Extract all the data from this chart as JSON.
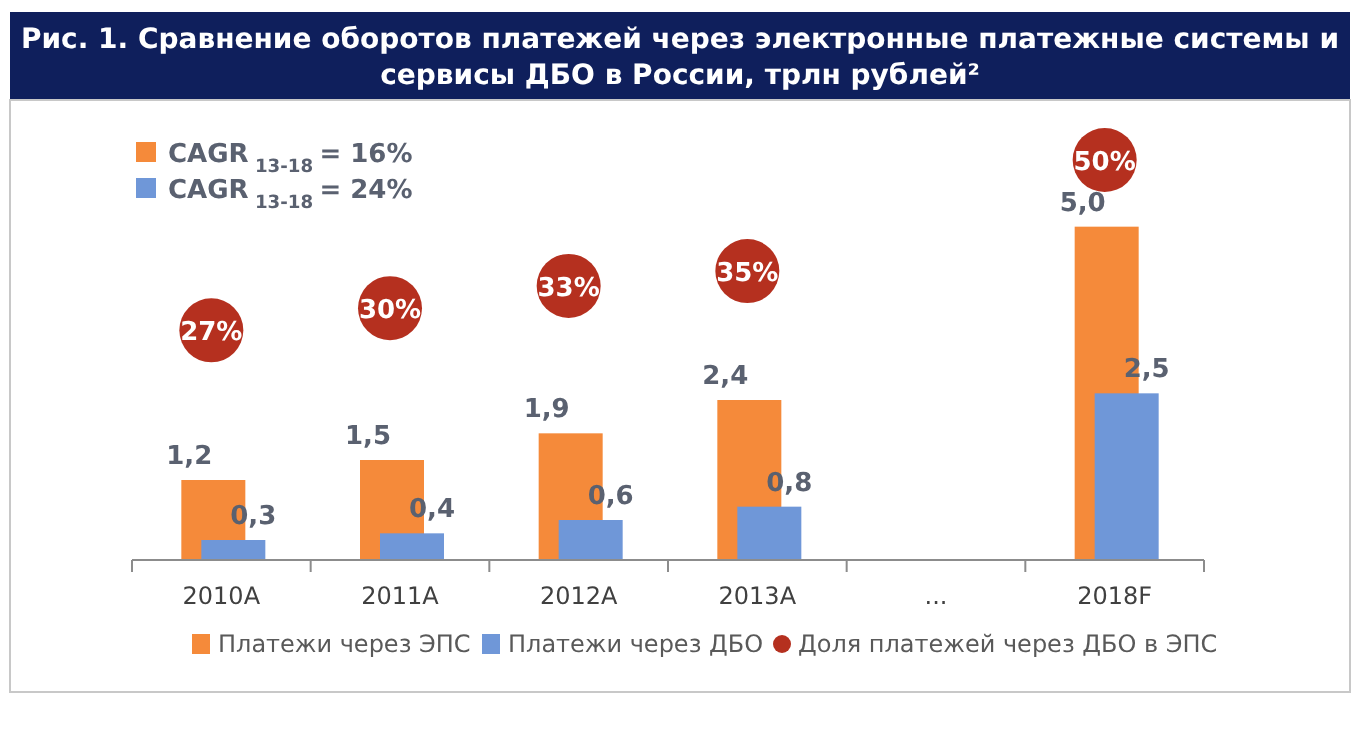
{
  "chart_data": {
    "type": "bar",
    "title": "Рис. 1. Сравнение оборотов платежей через электронные платежные системы и сервисы ДБО в России, трлн рублей²",
    "categories": [
      "2010A",
      "2011A",
      "2012A",
      "2013A",
      "...",
      "2018F"
    ],
    "series": [
      {
        "name": "Платежи через ЭПС",
        "color": "#f58a3a",
        "values": [
          1.2,
          1.5,
          1.9,
          2.4,
          null,
          5.0
        ],
        "value_labels": [
          "1,2",
          "1,5",
          "1,9",
          "2,4",
          null,
          "5,0"
        ]
      },
      {
        "name": "Платежи через ДБО",
        "color": "#6f97d8",
        "values": [
          0.3,
          0.4,
          0.6,
          0.8,
          null,
          2.5
        ],
        "value_labels": [
          "0,3",
          "0,4",
          "0,6",
          "0,8",
          null,
          "2,5"
        ]
      },
      {
        "name": "Доля платежей через ДБО в ЭПС",
        "type": "scatter",
        "axis": "y2",
        "color": "#b5301f",
        "values": [
          27,
          30,
          33,
          35,
          null,
          50
        ],
        "value_labels": [
          "27%",
          "30%",
          "33%",
          "35%",
          null,
          "50%"
        ]
      }
    ],
    "annotations": [
      "CAGR$_{13-18}$ = 16%",
      "CAGR$_{13-18}$ = 24%"
    ],
    "ylim": [
      0,
      6.3
    ],
    "y2lim": [
      -4,
      52.7
    ],
    "tick_labels": "x",
    "legend": "bottom",
    "marker": "circle"
  }
}
